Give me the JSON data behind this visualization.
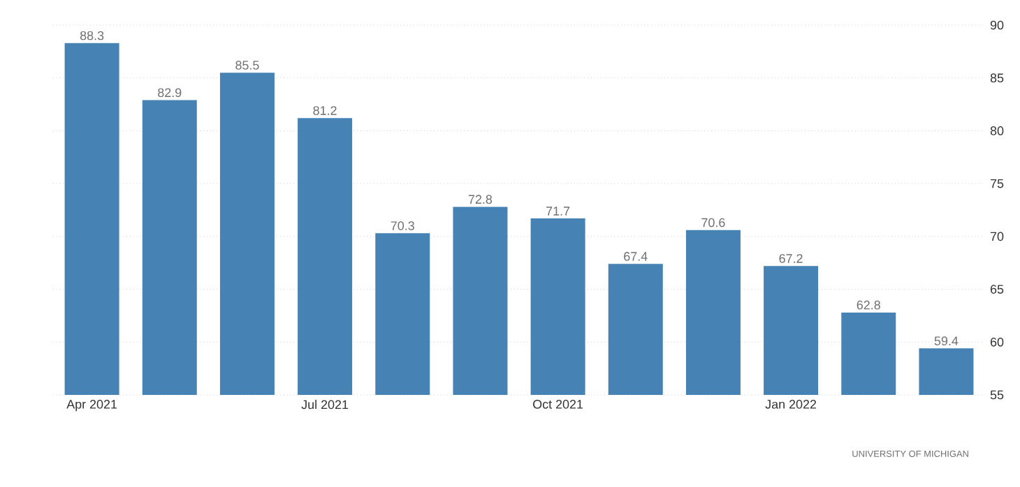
{
  "chart_data": {
    "type": "bar",
    "categories": [
      "Apr 2021",
      null,
      null,
      "Jul 2021",
      null,
      null,
      "Oct 2021",
      null,
      null,
      "Jan 2022",
      null,
      null
    ],
    "values": [
      88.3,
      82.9,
      85.5,
      81.2,
      70.3,
      72.8,
      71.7,
      67.4,
      70.6,
      67.2,
      62.8,
      59.4
    ],
    "color": "#4682b4",
    "ylim": [
      55,
      90
    ],
    "yticks": [
      55,
      60,
      65,
      70,
      75,
      80,
      85,
      90
    ],
    "grid": "y",
    "data_labels": true,
    "annotations": [
      "UNIVERSITY OF MICHIGAN"
    ]
  }
}
